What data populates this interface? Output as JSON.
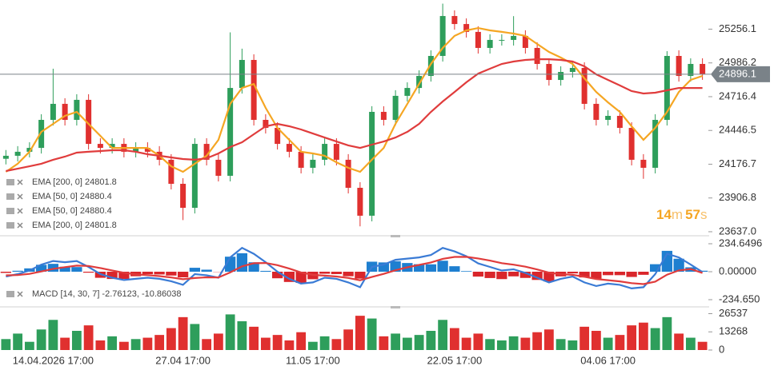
{
  "chart_data": [
    {
      "type": "candlestick",
      "x": [
        null,
        null,
        null,
        null,
        "14.04.2026 17:00",
        null,
        null,
        null,
        null,
        null,
        null,
        null,
        null,
        null,
        null,
        "27.04 17:00",
        null,
        null,
        null,
        null,
        null,
        null,
        null,
        null,
        null,
        null,
        "11.05 17:00",
        null,
        null,
        null,
        null,
        null,
        null,
        null,
        null,
        null,
        null,
        null,
        "22.05 17:00",
        null,
        null,
        null,
        null,
        null,
        null,
        null,
        null,
        null,
        null,
        null,
        null,
        "04.06 17:00",
        null,
        null,
        null,
        null,
        null,
        null,
        null,
        null
      ],
      "open": [
        24220,
        24244,
        24276,
        24307,
        24531,
        24659,
        24531,
        24691,
        24339,
        24307,
        24339,
        24276,
        24307,
        24276,
        24212,
        24020,
        23828,
        24339,
        24212,
        24084,
        24786,
        25010,
        24531,
        24467,
        24339,
        24276,
        24148,
        24212,
        24339,
        24212,
        23988,
        23765,
        24595,
        24531,
        24723,
        24786,
        24882,
        25042,
        25361,
        25297,
        25234,
        25106,
        25170,
        25170,
        25202,
        25106,
        24978,
        24850,
        24914,
        24946,
        24659,
        24531,
        24563,
        24467,
        24212,
        24148,
        24531,
        25042,
        24882,
        24978
      ],
      "high": [
        24290,
        24321,
        24352,
        24576,
        24940,
        24704,
        24736,
        24736,
        24384,
        24384,
        24384,
        24352,
        24352,
        24321,
        24257,
        24065,
        24384,
        24384,
        24257,
        25230,
        25100,
        25055,
        24576,
        24512,
        24384,
        24321,
        24257,
        24384,
        24384,
        24257,
        24033,
        24640,
        24640,
        24768,
        24831,
        24927,
        25087,
        25460,
        25406,
        25342,
        25279,
        25215,
        25215,
        25360,
        25247,
        25151,
        25023,
        24959,
        24991,
        24991,
        24704,
        24608,
        24608,
        24512,
        24257,
        24576,
        25080,
        25087,
        25023,
        25023
      ],
      "low": [
        24175,
        24199,
        24231,
        24262,
        24486,
        24486,
        24486,
        24294,
        24262,
        24262,
        24231,
        24231,
        24231,
        24167,
        23975,
        23730,
        23783,
        24167,
        24039,
        24039,
        24741,
        24486,
        24422,
        24294,
        24231,
        24103,
        24103,
        24167,
        24167,
        23943,
        23680,
        23720,
        24486,
        24486,
        24678,
        24741,
        24837,
        24997,
        25252,
        25189,
        25061,
        25061,
        25125,
        25125,
        25061,
        24933,
        24805,
        24805,
        24869,
        24614,
        24486,
        24486,
        24422,
        24167,
        24060,
        24103,
        24486,
        24837,
        24837,
        24851
      ],
      "close": [
        24244,
        24276,
        24307,
        24531,
        24659,
        24531,
        24691,
        24339,
        24307,
        24339,
        24276,
        24307,
        24276,
        24212,
        24020,
        23828,
        24339,
        24212,
        24084,
        24786,
        25010,
        24531,
        24467,
        24339,
        24276,
        24148,
        24212,
        24339,
        24212,
        23988,
        23765,
        24595,
        24531,
        24723,
        24786,
        24882,
        25042,
        25361,
        25297,
        25234,
        25106,
        25170,
        25170,
        25202,
        25106,
        24978,
        24850,
        24914,
        24946,
        24659,
        24531,
        24563,
        24467,
        24212,
        24148,
        24531,
        25042,
        24882,
        24978,
        24896
      ],
      "up_color": "#2e9e5b",
      "down_color": "#e0302f",
      "series": [
        {
          "color": "#f5a623",
          "values": [
            24116,
            24180,
            24276,
            24435,
            24499,
            24563,
            24595,
            24499,
            24403,
            24307,
            24307,
            24307,
            24307,
            24244,
            24160,
            24116,
            24180,
            24244,
            24371,
            24659,
            24786,
            24818,
            24627,
            24467,
            24371,
            24276,
            24263,
            24244,
            24192,
            24148,
            24116,
            24212,
            24307,
            24499,
            24659,
            24818,
            24978,
            25106,
            25202,
            25246,
            25265,
            25246,
            25234,
            25221,
            25202,
            25138,
            25074,
            25029,
            24978,
            24863,
            24754,
            24671,
            24595,
            24480,
            24371,
            24467,
            24595,
            24754,
            24850,
            24882
          ]
        },
        {
          "color": "#e03c3c",
          "values": [
            24122,
            24141,
            24160,
            24180,
            24212,
            24237,
            24269,
            24276,
            24282,
            24288,
            24288,
            24276,
            24256,
            24244,
            24231,
            24218,
            24212,
            24224,
            24263,
            24314,
            24352,
            24416,
            24480,
            24499,
            24480,
            24454,
            24422,
            24390,
            24358,
            24327,
            24307,
            24333,
            24358,
            24390,
            24435,
            24499,
            24595,
            24678,
            24754,
            24831,
            24901,
            24940,
            24978,
            24997,
            25010,
            25016,
            25016,
            25010,
            24997,
            24959,
            24895,
            24850,
            24806,
            24761,
            24742,
            24748,
            24767,
            24786,
            24786,
            24786
          ]
        }
      ],
      "legend": [
        "EMA [200, 0] 24801.8",
        "EMA [50, 0] 24880.4",
        "EMA [50, 0] 24880.4",
        "EMA [200, 0] 24801.8"
      ],
      "ylim": [
        23624,
        25489
      ],
      "yticks": [
        25256.1,
        24986.2,
        24716.4,
        24446.5,
        24176.7,
        23906.8,
        {
          "value": 23637,
          "label": "23637.0"
        }
      ],
      "last_price": 24896.1,
      "countdown": [
        "14",
        "m",
        "57",
        "s"
      ],
      "grid": false
    },
    {
      "type": "macd",
      "legend": "MACD [14, 30, 7] -2.76123, -10.86038",
      "macd": [
        -40,
        -20,
        10,
        60,
        90,
        80,
        90,
        40,
        -20,
        -50,
        -70,
        -60,
        -50,
        -60,
        -80,
        -110,
        -20,
        -30,
        -50,
        120,
        200,
        150,
        80,
        0,
        -60,
        -100,
        -90,
        -50,
        -60,
        -90,
        -130,
        40,
        60,
        100,
        110,
        120,
        140,
        200,
        170,
        130,
        70,
        40,
        10,
        20,
        -10,
        -50,
        -90,
        -60,
        -40,
        -90,
        -120,
        -100,
        -110,
        -140,
        -130,
        -20,
        150,
        120,
        60,
        -2.8
      ],
      "signal": [
        -30,
        -28,
        -18,
        2,
        24,
        38,
        51,
        48,
        31,
        11,
        -9,
        -22,
        -29,
        -37,
        -48,
        -63,
        -53,
        -47,
        -48,
        -6,
        45,
        71,
        73,
        55,
        26,
        -6,
        -27,
        -33,
        -40,
        -52,
        -72,
        -44,
        -18,
        12,
        37,
        57,
        78,
        108,
        124,
        125,
        111,
        93,
        72,
        59,
        42,
        19,
        -8,
        -21,
        -26,
        -42,
        -61,
        -71,
        -81,
        -96,
        -104,
        -83,
        -25,
        11,
        23,
        -10.9
      ],
      "histogram": [
        -10,
        8,
        28,
        58,
        66,
        42,
        39,
        -8,
        -51,
        -61,
        -61,
        -38,
        -21,
        -23,
        -32,
        -47,
        33,
        17,
        -2,
        126,
        155,
        79,
        7,
        -55,
        -86,
        -94,
        -63,
        -17,
        -20,
        -38,
        -58,
        84,
        78,
        88,
        73,
        63,
        62,
        92,
        46,
        5,
        -41,
        -53,
        -62,
        -39,
        -52,
        -69,
        -82,
        -39,
        -14,
        -48,
        -59,
        -29,
        -29,
        -44,
        -26,
        63,
        175,
        109,
        37,
        8.1
      ],
      "macd_color": "#3a7bd5",
      "signal_color": "#e03c3c",
      "pos_color": "#1e7fd0",
      "neg_color": "#d9262b",
      "ylim": [
        -281.6,
        281.6
      ],
      "yticks": [
        234.6496,
        {
          "value": 0,
          "label": "0.00000"
        },
        {
          "value": -234.65,
          "label": "-234.650"
        }
      ]
    },
    {
      "type": "volume",
      "values": [
        8000,
        12000,
        6000,
        15000,
        22000,
        9000,
        14000,
        18000,
        7000,
        10000,
        6000,
        8000,
        9000,
        11000,
        16000,
        24000,
        19000,
        8000,
        12000,
        26000,
        21000,
        17000,
        9000,
        11000,
        7000,
        13000,
        6000,
        10000,
        8000,
        15000,
        25000,
        23000,
        10000,
        12000,
        9000,
        11000,
        14000,
        22000,
        16000,
        9000,
        12000,
        8000,
        7000,
        10000,
        9000,
        13000,
        15000,
        8000,
        7000,
        17000,
        14000,
        9000,
        11000,
        18000,
        20000,
        16000,
        24000,
        12000,
        9000,
        6000
      ],
      "ylim": [
        0,
        30328
      ],
      "yticks": [
        26537,
        13268,
        0
      ]
    }
  ]
}
